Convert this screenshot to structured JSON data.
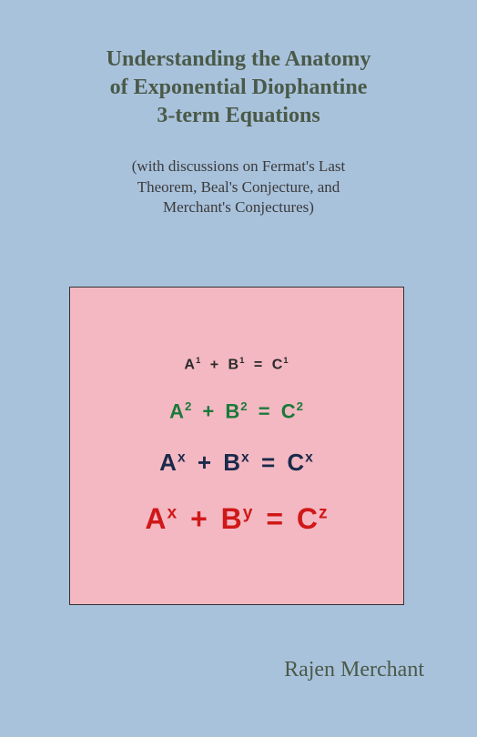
{
  "cover": {
    "title_line1": "Understanding the Anatomy",
    "title_line2": "of Exponential Diophantine",
    "title_line3": "3-term Equations",
    "subtitle_line1": "(with discussions on Fermat's Last",
    "subtitle_line2": "Theorem, Beal's Conjecture, and",
    "subtitle_line3": "Merchant's Conjectures)",
    "author": "Rajen Merchant",
    "background_color": "#a9c2dc",
    "title_color": "#4a5a48",
    "subtitle_color": "#3a3a3a",
    "author_color": "#4a5a48"
  },
  "equation_box": {
    "background_color": "#f4b8c2",
    "border_color": "#333333",
    "equations": [
      {
        "base_terms": [
          "A",
          "B",
          "C"
        ],
        "exponents": [
          "1",
          "1",
          "1"
        ],
        "color": "#2a2a2a",
        "font_size": 16
      },
      {
        "base_terms": [
          "A",
          "B",
          "C"
        ],
        "exponents": [
          "2",
          "2",
          "2"
        ],
        "color": "#1a7a3a",
        "font_size": 22
      },
      {
        "base_terms": [
          "A",
          "B",
          "C"
        ],
        "exponents": [
          "x",
          "x",
          "x"
        ],
        "color": "#1a2a4a",
        "font_size": 26
      },
      {
        "base_terms": [
          "A",
          "B",
          "C"
        ],
        "exponents": [
          "x",
          "y",
          "z"
        ],
        "color": "#d01818",
        "font_size": 32
      }
    ]
  }
}
